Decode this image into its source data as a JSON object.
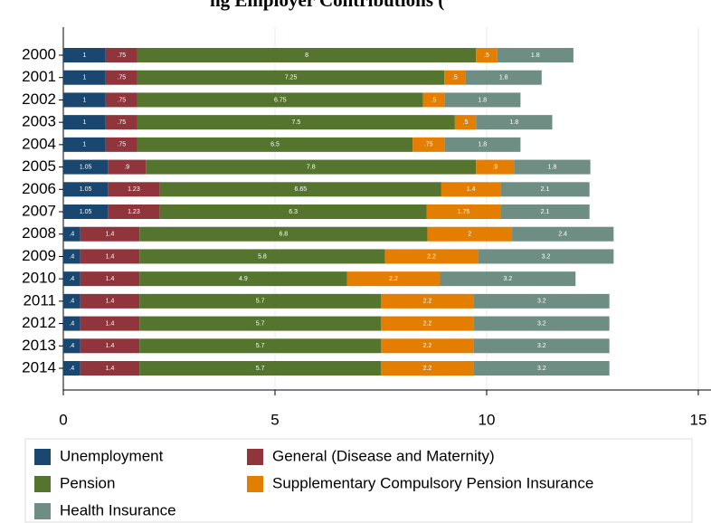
{
  "chart_data": {
    "type": "stacked-bar-horizontal",
    "title": "ng Employer Contributions (",
    "categories": [
      "2000",
      "2001",
      "2002",
      "2003",
      "2004",
      "2005",
      "2006",
      "2007",
      "2008",
      "2009",
      "2010",
      "2011",
      "2012",
      "2013",
      "2014"
    ],
    "series": [
      {
        "name": "Unemployment",
        "color": "#1a476f",
        "values": [
          1,
          1,
          1,
          1,
          1,
          1.05,
          1.05,
          1.05,
          0.4,
          0.4,
          0.4,
          0.4,
          0.4,
          0.4,
          0.4
        ],
        "value_labels": [
          "1",
          "1",
          "1",
          "1",
          "1",
          "1.05",
          "1.05",
          "1.05",
          ".4",
          ".4",
          ".4",
          ".4",
          ".4",
          ".4",
          ".4"
        ]
      },
      {
        "name": "General (Disease and Maternity)",
        "color": "#90353b",
        "values": [
          0.75,
          0.75,
          0.75,
          0.75,
          0.75,
          0.9,
          1.23,
          1.23,
          1.4,
          1.4,
          1.4,
          1.4,
          1.4,
          1.4,
          1.4
        ],
        "value_labels": [
          ".75",
          ".75",
          ".75",
          ".75",
          ".75",
          ".9",
          "1.23",
          "1.23",
          "1.4",
          "1.4",
          "1.4",
          "1.4",
          "1.4",
          "1.4",
          "1.4"
        ]
      },
      {
        "name": "Pension",
        "color": "#55752f",
        "values": [
          8,
          7.25,
          6.75,
          7.5,
          6.5,
          7.8,
          6.65,
          6.3,
          6.8,
          5.8,
          4.9,
          5.7,
          5.7,
          5.7,
          5.7
        ],
        "value_labels": [
          "8",
          "7.25",
          "6.75",
          "7.5",
          "6.5",
          "7.8",
          "6.65",
          "6.3",
          "6.8",
          "5.8",
          "4.9",
          "5.7",
          "5.7",
          "5.7",
          "5.7"
        ]
      },
      {
        "name": "Supplementary Compulsory Pension Insurance",
        "color": "#e37e00",
        "values": [
          0.5,
          0.5,
          0.5,
          0.5,
          0.75,
          0.9,
          1.4,
          1.75,
          2,
          2.2,
          2.2,
          2.2,
          2.2,
          2.2,
          2.2
        ],
        "value_labels": [
          ".5",
          ".5",
          ".5",
          ".5",
          ".75",
          ".9",
          "1.4",
          "1.75",
          "2",
          "2.2",
          "2.2",
          "2.2",
          "2.2",
          "2.2",
          "2.2"
        ]
      },
      {
        "name": "Health Insurance",
        "color": "#6e8e84",
        "values": [
          1.8,
          1.8,
          1.8,
          1.8,
          1.8,
          1.8,
          2.1,
          2.1,
          2.4,
          3.2,
          3.2,
          3.2,
          3.2,
          3.2,
          3.2
        ],
        "value_labels": [
          "1.8",
          "1.8",
          "1.8",
          "1.8",
          "1.8",
          "1.8",
          "2.1",
          "2.1",
          "2.4",
          "3.2",
          "3.2",
          "3.2",
          "3.2",
          "3.2",
          "3.2"
        ]
      }
    ],
    "xlim": [
      0,
      15.3
    ],
    "xticks": [
      0,
      5,
      10,
      15
    ],
    "grid": true
  }
}
